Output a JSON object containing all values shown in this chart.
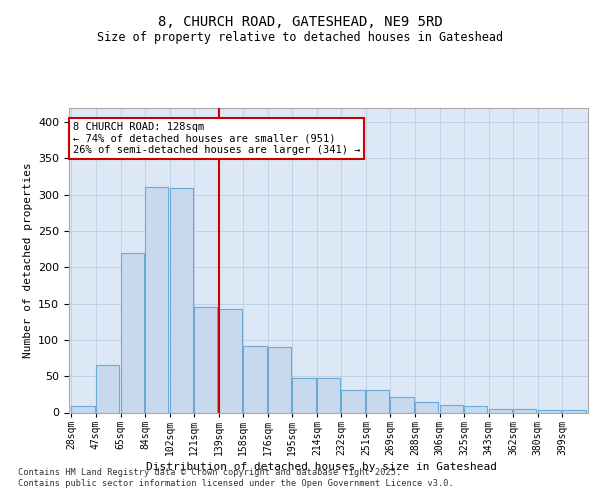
{
  "title1": "8, CHURCH ROAD, GATESHEAD, NE9 5RD",
  "title2": "Size of property relative to detached houses in Gateshead",
  "xlabel": "Distribution of detached houses by size in Gateshead",
  "ylabel": "Number of detached properties",
  "bar_color": "#c8d9ee",
  "bar_edgecolor": "#6aaad4",
  "vline_color": "#cc0000",
  "annotation_text": "8 CHURCH ROAD: 128sqm\n← 74% of detached houses are smaller (951)\n26% of semi-detached houses are larger (341) →",
  "annotation_box_facecolor": "#ffffff",
  "annotation_box_edgecolor": "#cc0000",
  "bin_labels": [
    "28sqm",
    "47sqm",
    "65sqm",
    "84sqm",
    "102sqm",
    "121sqm",
    "139sqm",
    "158sqm",
    "176sqm",
    "195sqm",
    "214sqm",
    "232sqm",
    "251sqm",
    "269sqm",
    "288sqm",
    "306sqm",
    "325sqm",
    "343sqm",
    "362sqm",
    "380sqm",
    "399sqm"
  ],
  "bin_values": [
    9,
    65,
    220,
    311,
    309,
    145,
    143,
    91,
    90,
    48,
    47,
    31,
    31,
    21,
    14,
    11,
    9,
    5,
    5,
    3,
    3
  ],
  "vline_bin_index": 5,
  "ylim": [
    0,
    420
  ],
  "yticks": [
    0,
    50,
    100,
    150,
    200,
    250,
    300,
    350,
    400
  ],
  "footer_text": "Contains HM Land Registry data © Crown copyright and database right 2025.\nContains public sector information licensed under the Open Government Licence v3.0.",
  "bg_color": "#dce8f5",
  "fig_color": "#ffffff",
  "grid_color": "#b8c8dc"
}
